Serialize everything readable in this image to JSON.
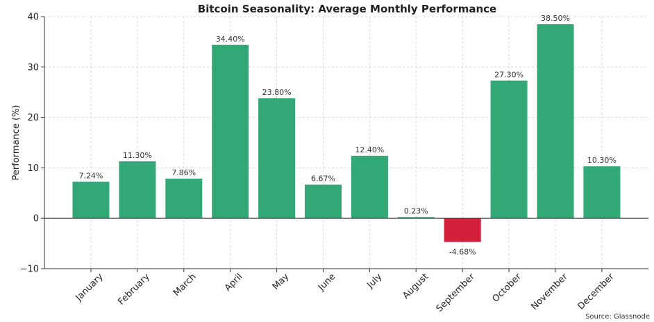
{
  "chart_data": {
    "type": "bar",
    "title": "Bitcoin Seasonality: Average Monthly Performance",
    "xlabel": "",
    "ylabel": "Performance (%)",
    "categories": [
      "January",
      "February",
      "March",
      "April",
      "May",
      "June",
      "July",
      "August",
      "September",
      "October",
      "November",
      "December"
    ],
    "values": [
      7.24,
      11.3,
      7.86,
      34.4,
      23.8,
      6.67,
      12.4,
      0.23,
      -4.68,
      27.3,
      38.5,
      10.3
    ],
    "data_labels": [
      "7.24%",
      "11.30%",
      "7.86%",
      "34.40%",
      "23.80%",
      "6.67%",
      "12.40%",
      "0.23%",
      "-4.68%",
      "27.30%",
      "38.50%",
      "10.30%"
    ],
    "ylim": [
      -10,
      40
    ],
    "yticks": [
      -10,
      0,
      10,
      20,
      30,
      40
    ],
    "ytick_labels": [
      "−10",
      "0",
      "10",
      "20",
      "30",
      "40"
    ],
    "grid": true,
    "positive_color": "#32a877",
    "negative_color": "#d21f3c",
    "source": "Source: Glassnode"
  }
}
